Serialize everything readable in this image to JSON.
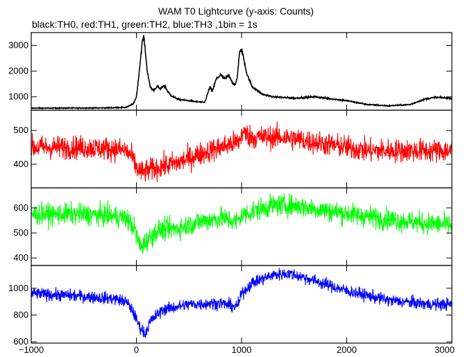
{
  "title": "WAM T0 Lightcurve (y-axis: Counts)",
  "subtitle": "black:TH0, red:TH1, green:TH2, blue:TH3 ,1bin = 1s",
  "chart_data": {
    "type": "line",
    "title": "WAM T0 Lightcurve (y-axis: Counts)",
    "subtitle": "black:TH0, red:TH1, green:TH2, blue:TH3 ,1bin = 1s",
    "xlabel": "",
    "ylabel": "",
    "xlim": [
      -1000,
      3000
    ],
    "x_ticks": [
      -1000,
      0,
      1000,
      2000,
      3000
    ],
    "x_tick_labels": [
      "−1000",
      "0",
      "1000",
      "2000",
      "3000"
    ],
    "grid": false,
    "legend": "none",
    "panels": [
      {
        "name": "TH0",
        "color": "#000000",
        "ylim": [
          480,
          3500
        ],
        "y_ticks": [
          1000,
          2000,
          3000
        ],
        "y_tick_labels": [
          "1000",
          "2000",
          "3000"
        ],
        "noise": 35,
        "x": [
          -1000,
          -600,
          -300,
          -100,
          -30,
          0,
          20,
          40,
          55,
          70,
          85,
          100,
          130,
          160,
          200,
          230,
          260,
          280,
          300,
          330,
          400,
          500,
          600,
          650,
          700,
          720,
          760,
          800,
          840,
          880,
          920,
          940,
          960,
          980,
          1000,
          1020,
          1050,
          1100,
          1200,
          1300,
          1500,
          1700,
          2000,
          2200,
          2400,
          2600,
          2750,
          2850,
          3000
        ],
        "y": [
          560,
          565,
          570,
          590,
          720,
          1000,
          1700,
          2500,
          3100,
          3350,
          2800,
          2100,
          1400,
          1250,
          1400,
          1300,
          1450,
          1350,
          1200,
          1050,
          900,
          850,
          800,
          780,
          1400,
          1200,
          1700,
          1850,
          1700,
          1850,
          1500,
          1450,
          1800,
          2700,
          2850,
          2500,
          1900,
          1400,
          1100,
          1000,
          950,
          1000,
          850,
          700,
          650,
          700,
          920,
          980,
          950
        ]
      },
      {
        "name": "TH1",
        "color": "#ff0000",
        "ylim": [
          330,
          560
        ],
        "y_ticks": [
          400,
          500
        ],
        "y_tick_labels": [
          "400",
          "500"
        ],
        "noise": 34,
        "x": [
          -1000,
          -500,
          -200,
          -100,
          -50,
          0,
          50,
          100,
          200,
          400,
          600,
          800,
          950,
          990,
          1000,
          1100,
          1400,
          1800,
          2200,
          2600,
          3000
        ],
        "y": [
          450,
          450,
          445,
          440,
          425,
          390,
          375,
          380,
          390,
          405,
          430,
          450,
          465,
          470,
          495,
          480,
          480,
          460,
          440,
          440,
          440
        ]
      },
      {
        "name": "TH2",
        "color": "#00ff00",
        "ylim": [
          370,
          680
        ],
        "y_ticks": [
          400,
          500,
          600
        ],
        "y_tick_labels": [
          "400",
          "500",
          "600"
        ],
        "noise": 42,
        "x": [
          -1000,
          -600,
          -300,
          -100,
          -20,
          40,
          100,
          200,
          400,
          600,
          800,
          950,
          990,
          1000,
          1100,
          1300,
          1500,
          1800,
          2200,
          2600,
          3000
        ],
        "y": [
          575,
          575,
          570,
          560,
          520,
          440,
          470,
          510,
          520,
          545,
          560,
          545,
          560,
          570,
          585,
          610,
          610,
          590,
          565,
          545,
          530
        ]
      },
      {
        "name": "TH3",
        "color": "#0000ff",
        "ylim": [
          590,
          1170
        ],
        "y_ticks": [
          600,
          800,
          1000
        ],
        "y_tick_labels": [
          "600",
          "800",
          "1000"
        ],
        "noise": 45,
        "x": [
          -1000,
          -500,
          -200,
          -100,
          -40,
          20,
          80,
          140,
          250,
          500,
          800,
          950,
          980,
          1000,
          1100,
          1300,
          1450,
          1600,
          2000,
          2400,
          2800,
          3000
        ],
        "y": [
          960,
          940,
          920,
          900,
          840,
          730,
          660,
          760,
          840,
          880,
          890,
          860,
          900,
          960,
          1040,
          1100,
          1110,
          1080,
          980,
          910,
          880,
          880
        ]
      }
    ]
  }
}
